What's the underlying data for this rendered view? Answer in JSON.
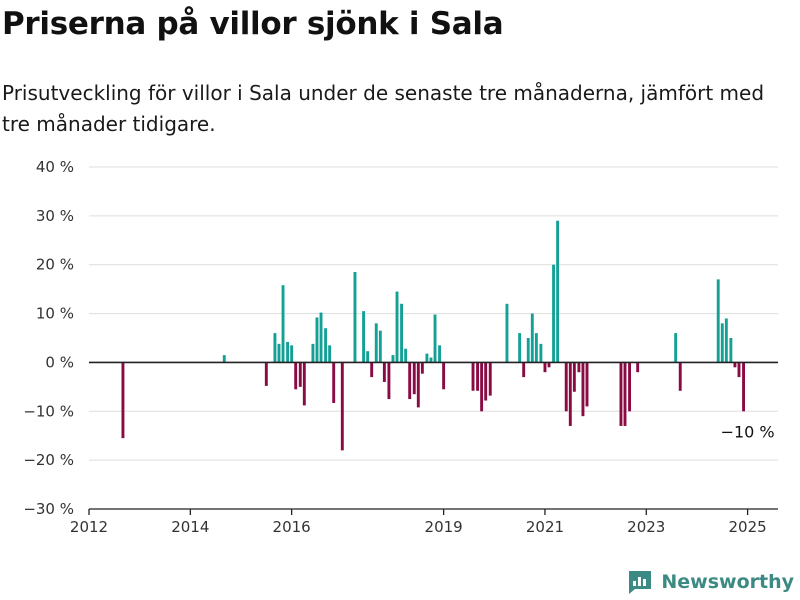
{
  "header": {
    "title": "Priserna på villor sjönk i Sala",
    "subtitle": "Prisutveckling för villor i Sala under de senaste tre månaderna, jämfört med tre månader tidigare."
  },
  "brand": {
    "name": "Newsworthy"
  },
  "colors": {
    "positive": "#13a095",
    "negative": "#8a0a44",
    "axis": "#222222",
    "grid": "#dddddd"
  },
  "chart_data": {
    "type": "bar",
    "title": "Priserna på villor sjönk i Sala",
    "subtitle": "Prisutveckling för villor i Sala under de senaste tre månaderna, jämfört med tre månader tidigare.",
    "xlabel": "",
    "ylabel": "",
    "unit": "%",
    "xlim": [
      2012,
      2025.6
    ],
    "ylim": [
      -30,
      40
    ],
    "x_ticks": [
      {
        "value": 2012,
        "label": "2012"
      },
      {
        "value": 2014,
        "label": "2014"
      },
      {
        "value": 2016,
        "label": "2016"
      },
      {
        "value": 2019,
        "label": "2019"
      },
      {
        "value": 2021,
        "label": "2021"
      },
      {
        "value": 2023,
        "label": "2023"
      },
      {
        "value": 2025,
        "label": "2025"
      }
    ],
    "y_ticks": [
      {
        "value": 40,
        "label": "40 %"
      },
      {
        "value": 30,
        "label": "30 %"
      },
      {
        "value": 20,
        "label": "20 %"
      },
      {
        "value": 10,
        "label": "10 %"
      },
      {
        "value": 0,
        "label": "0 %"
      },
      {
        "value": -10,
        "label": "−10 %"
      },
      {
        "value": -20,
        "label": "−20 %"
      },
      {
        "value": -30,
        "label": "−30 %"
      }
    ],
    "grid": true,
    "legend": "none",
    "annotation": {
      "text": "−10 %",
      "x": 2025.0,
      "y": -10
    },
    "points": [
      {
        "x": 2012.67,
        "y": -15.5
      },
      {
        "x": 2014.67,
        "y": 1.5
      },
      {
        "x": 2015.5,
        "y": -4.8
      },
      {
        "x": 2015.67,
        "y": 6
      },
      {
        "x": 2015.75,
        "y": 3.8
      },
      {
        "x": 2015.83,
        "y": 15.8
      },
      {
        "x": 2015.92,
        "y": 4.2
      },
      {
        "x": 2016.0,
        "y": 3.5
      },
      {
        "x": 2016.08,
        "y": -5.5
      },
      {
        "x": 2016.17,
        "y": -5
      },
      {
        "x": 2016.25,
        "y": -8.8
      },
      {
        "x": 2016.42,
        "y": 3.8
      },
      {
        "x": 2016.5,
        "y": 9.2
      },
      {
        "x": 2016.58,
        "y": 10.2
      },
      {
        "x": 2016.67,
        "y": 7
      },
      {
        "x": 2016.75,
        "y": 3.5
      },
      {
        "x": 2016.83,
        "y": -8.3
      },
      {
        "x": 2017.0,
        "y": -18
      },
      {
        "x": 2017.25,
        "y": 18.5
      },
      {
        "x": 2017.42,
        "y": 10.5
      },
      {
        "x": 2017.5,
        "y": 2.3
      },
      {
        "x": 2017.58,
        "y": -3
      },
      {
        "x": 2017.67,
        "y": 8
      },
      {
        "x": 2017.75,
        "y": 6.5
      },
      {
        "x": 2017.83,
        "y": -4
      },
      {
        "x": 2017.92,
        "y": -7.5
      },
      {
        "x": 2018.0,
        "y": 1.5
      },
      {
        "x": 2018.08,
        "y": 14.5
      },
      {
        "x": 2018.17,
        "y": 12
      },
      {
        "x": 2018.25,
        "y": 2.8
      },
      {
        "x": 2018.33,
        "y": -7.5
      },
      {
        "x": 2018.42,
        "y": -6.5
      },
      {
        "x": 2018.5,
        "y": -9.2
      },
      {
        "x": 2018.58,
        "y": -2.3
      },
      {
        "x": 2018.67,
        "y": 1.8
      },
      {
        "x": 2018.75,
        "y": 1
      },
      {
        "x": 2018.83,
        "y": 9.8
      },
      {
        "x": 2018.92,
        "y": 3.5
      },
      {
        "x": 2019.0,
        "y": -5.5
      },
      {
        "x": 2019.58,
        "y": -5.8
      },
      {
        "x": 2019.67,
        "y": -5.8
      },
      {
        "x": 2019.75,
        "y": -10
      },
      {
        "x": 2019.83,
        "y": -7.8
      },
      {
        "x": 2019.92,
        "y": -6.8
      },
      {
        "x": 2020.25,
        "y": 12
      },
      {
        "x": 2020.5,
        "y": 6
      },
      {
        "x": 2020.58,
        "y": -3
      },
      {
        "x": 2020.67,
        "y": 5
      },
      {
        "x": 2020.75,
        "y": 10
      },
      {
        "x": 2020.83,
        "y": 6
      },
      {
        "x": 2020.92,
        "y": 3.8
      },
      {
        "x": 2021.0,
        "y": -2
      },
      {
        "x": 2021.08,
        "y": -1
      },
      {
        "x": 2021.17,
        "y": 20
      },
      {
        "x": 2021.25,
        "y": 29
      },
      {
        "x": 2021.42,
        "y": -10
      },
      {
        "x": 2021.5,
        "y": -13
      },
      {
        "x": 2021.58,
        "y": -6
      },
      {
        "x": 2021.67,
        "y": -2
      },
      {
        "x": 2021.75,
        "y": -11
      },
      {
        "x": 2021.83,
        "y": -9
      },
      {
        "x": 2022.5,
        "y": -13
      },
      {
        "x": 2022.58,
        "y": -13
      },
      {
        "x": 2022.67,
        "y": -10
      },
      {
        "x": 2022.83,
        "y": -2
      },
      {
        "x": 2023.58,
        "y": 6
      },
      {
        "x": 2023.67,
        "y": -5.8
      },
      {
        "x": 2024.42,
        "y": 17
      },
      {
        "x": 2024.5,
        "y": 8
      },
      {
        "x": 2024.58,
        "y": 9
      },
      {
        "x": 2024.67,
        "y": 5
      },
      {
        "x": 2024.75,
        "y": -1
      },
      {
        "x": 2024.83,
        "y": -3
      },
      {
        "x": 2024.92,
        "y": -10
      }
    ]
  }
}
